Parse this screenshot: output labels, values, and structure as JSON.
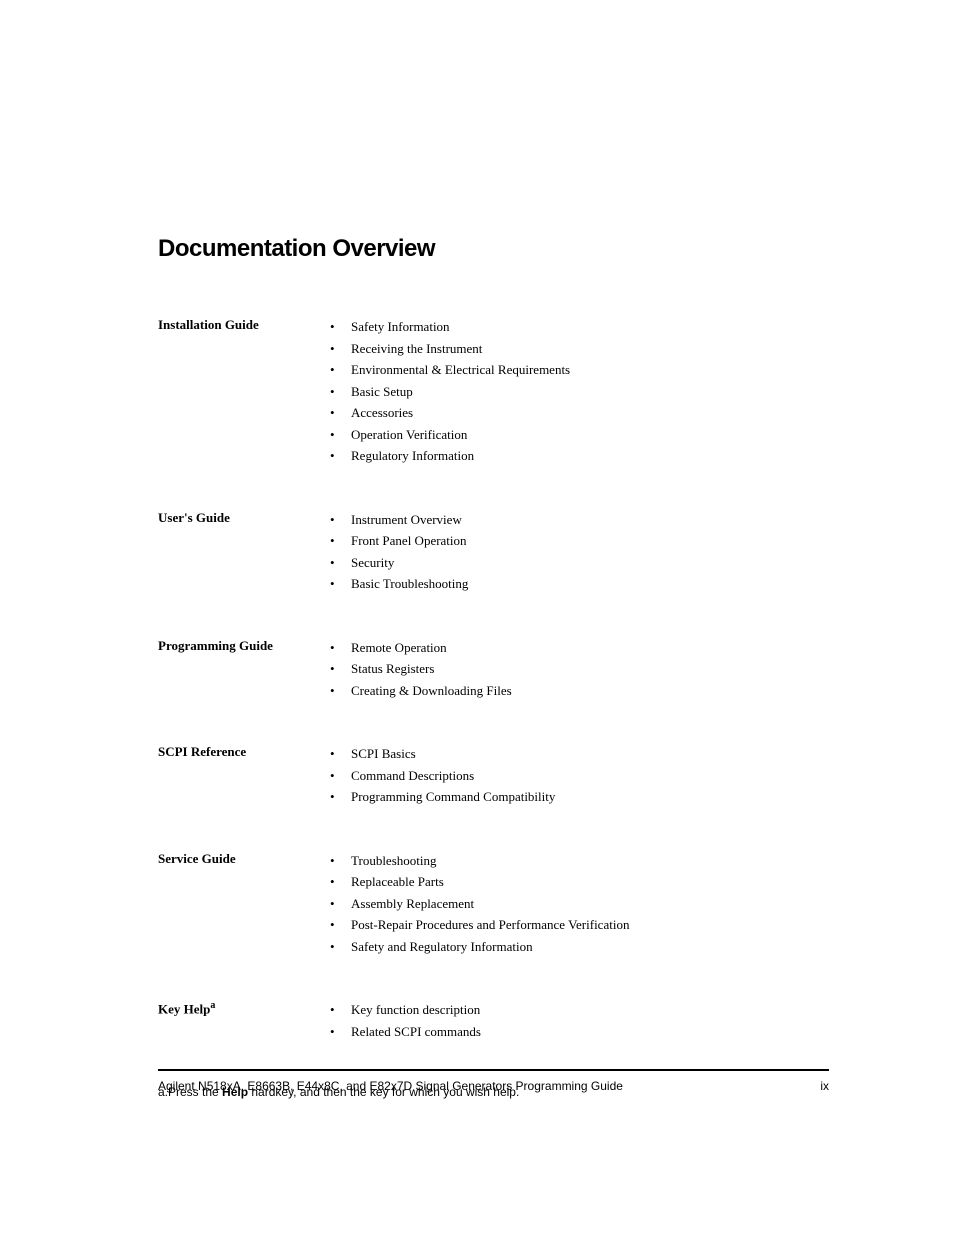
{
  "heading": "Documentation Overview",
  "sections": [
    {
      "label": "Installation Guide",
      "items": [
        "Safety Information",
        "Receiving the Instrument",
        "Environmental & Electrical Requirements",
        "Basic Setup",
        "Accessories",
        "Operation Verification",
        "Regulatory Information"
      ]
    },
    {
      "label": "User's Guide",
      "items": [
        "Instrument Overview",
        "Front Panel Operation",
        "Security",
        "Basic Troubleshooting"
      ]
    },
    {
      "label": "Programming Guide",
      "items": [
        "Remote Operation",
        "Status Registers",
        "Creating & Downloading Files"
      ]
    },
    {
      "label": "SCPI Reference",
      "items": [
        "SCPI Basics",
        "Command Descriptions",
        "Programming Command Compatibility"
      ]
    },
    {
      "label": "Service Guide",
      "items": [
        "Troubleshooting",
        "Replaceable Parts",
        "Assembly Replacement",
        "Post-Repair Procedures and Performance Verification",
        "Safety and Regulatory Information"
      ]
    },
    {
      "label": "Key Help",
      "label_super": "a",
      "items": [
        "Key function description",
        "Related SCPI commands"
      ]
    }
  ],
  "footnote": {
    "prefix": "a.Press the ",
    "bold": "Help",
    "suffix": " hardkey, and then the key for which you wish help."
  },
  "footer": {
    "left": "Agilent N518xA, E8663B, E44x8C, and E82x7D Signal Generators Programming Guide",
    "right": "ix"
  }
}
